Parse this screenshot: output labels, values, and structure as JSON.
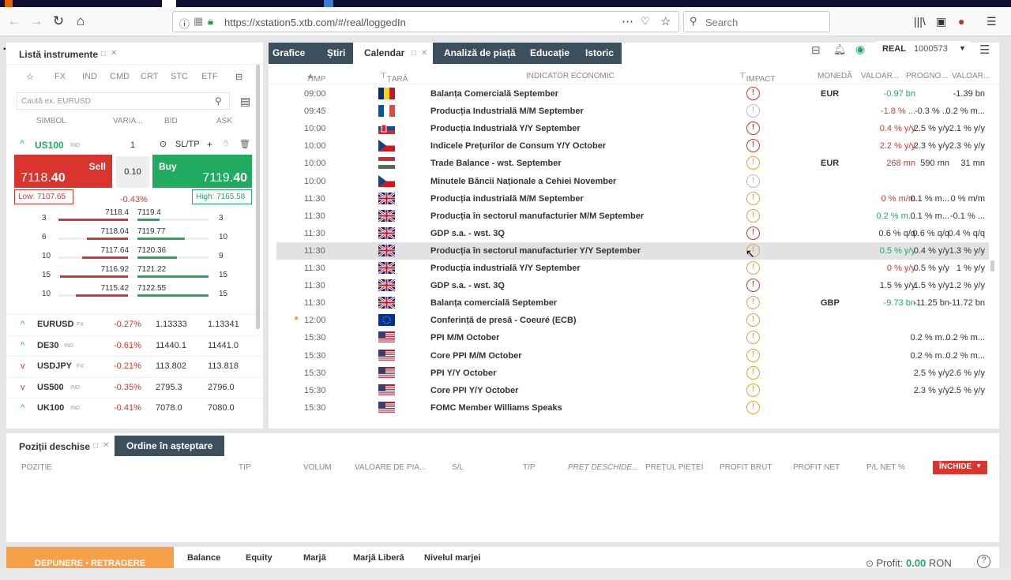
{
  "browser": {
    "url": "https://xstation5.xtb.com/#/real/loggedIn",
    "search_placeholder": "Search"
  },
  "left": {
    "title": "Listă instrumente",
    "categories": [
      "FX",
      "IND",
      "CMD",
      "CRT",
      "STC",
      "ETF"
    ],
    "search_placeholder": "Caută ex. EURUSD",
    "cols": [
      "SIMBOL",
      "VARIA...",
      "BID",
      "ASK"
    ],
    "selected": {
      "symbol": "US100",
      "tag": "IND",
      "qty": "1",
      "sltp": "SL/TP",
      "sell_label": "Sell",
      "sell_price_main": "7118.",
      "sell_price_big": "40",
      "buy_label": "Buy",
      "buy_price_main": "7119.",
      "buy_price_big": "40",
      "volume": "0.10",
      "low": "Low: 7107.65",
      "high": "High: 7165.58",
      "change": "-0.43%"
    },
    "depth": [
      {
        "l": "3",
        "bid": "7118.4",
        "ask": "7119.4",
        "r": "3"
      },
      {
        "l": "6",
        "bid": "7118.04",
        "ask": "7119.77",
        "r": "10"
      },
      {
        "l": "10",
        "bid": "7117.64",
        "ask": "7120.36",
        "r": "9"
      },
      {
        "l": "15",
        "bid": "7116.92",
        "ask": "7121.22",
        "r": "15"
      },
      {
        "l": "10",
        "bid": "7115.42",
        "ask": "7122.55",
        "r": "15"
      }
    ],
    "instruments": [
      {
        "sym": "EURUSD",
        "tag": "FX",
        "chg": "-0.27%",
        "bid": "1.13333",
        "ask": "1.13341"
      },
      {
        "sym": "DE30",
        "tag": "IND",
        "chg": "-0.61%",
        "bid": "11440.1",
        "ask": "11441.0"
      },
      {
        "sym": "USDJPY",
        "tag": "FX",
        "chg": "-0.21%",
        "bid": "113.802",
        "ask": "113.818"
      },
      {
        "sym": "US500",
        "tag": "IND",
        "chg": "-0.35%",
        "bid": "2795.3",
        "ask": "2796.0"
      },
      {
        "sym": "UK100",
        "tag": "IND",
        "chg": "-0.41%",
        "bid": "7078.0",
        "ask": "7080.0"
      }
    ]
  },
  "center": {
    "tabs": [
      "Grafice",
      "Știri",
      "Calendar",
      "Analiză de piață",
      "Educație",
      "Istoric"
    ],
    "headers": [
      "TIMP",
      "ȚARĂ",
      "INDICATOR ECONOMIC",
      "IMPACT",
      "MONEDĂ",
      "VALOAR...",
      "PROGNO...",
      "VALOAR..."
    ],
    "rows": [
      {
        "t": "09:00",
        "flag": "ro",
        "ind": "Balanța Comercială September",
        "imp": "h",
        "cur": "EUR",
        "v1": "-0.97 bn",
        "c1": "grn",
        "v2": "",
        "v3": "-1.39 bn"
      },
      {
        "t": "09:45",
        "flag": "fr",
        "ind": "Producția Industrială M/M September",
        "imp": "l",
        "cur": "",
        "v1": "-1.8 % ...",
        "c1": "red",
        "v2": "-0.3 % ...",
        "v3": "0.2 % m..."
      },
      {
        "t": "10:00",
        "flag": "sk",
        "ind": "Producția Industrială Y/Y September",
        "imp": "h",
        "cur": "",
        "v1": "0.4 % y/y",
        "c1": "red",
        "v2": "2.5 % y/y",
        "v3": "2.1 % y/y"
      },
      {
        "t": "10:00",
        "flag": "cz",
        "ind": "Indicele Prețurilor de Consum Y/Y October",
        "imp": "h",
        "cur": "",
        "v1": "2.2 % y/y",
        "c1": "red",
        "v2": "2.3 % y/y",
        "v3": "2.3 % y/y"
      },
      {
        "t": "10:00",
        "flag": "hu",
        "ind": "Trade Balance - wst. September",
        "imp": "m",
        "cur": "EUR",
        "v1": "268 mn",
        "c1": "red",
        "v2": "590 mn",
        "v3": "31 mn"
      },
      {
        "t": "10:00",
        "flag": "cz",
        "ind": "Minutele Băncii Naționale a Cehiei November",
        "imp": "l",
        "cur": "",
        "v1": "",
        "c1": "blk",
        "v2": "",
        "v3": ""
      },
      {
        "t": "11:30",
        "flag": "gb",
        "ind": "Producția industrială M/M September",
        "imp": "m",
        "cur": "",
        "v1": "0 % m/m",
        "c1": "red",
        "v2": "0.1 % m...",
        "v3": "0 % m/m"
      },
      {
        "t": "11:30",
        "flag": "gb",
        "ind": "Producția în sectorul manufacturier M/M September",
        "imp": "m",
        "cur": "",
        "v1": "0.2 % m...",
        "c1": "grn",
        "v2": "0.1 % m...",
        "v3": "-0.1 % ..."
      },
      {
        "t": "11:30",
        "flag": "gb",
        "ind": "GDP s.a. - wst. 3Q",
        "imp": "h",
        "cur": "",
        "v1": "0.6 % q/q",
        "c1": "blk",
        "v2": "0.6 % q/q",
        "v3": "0.4 % q/q"
      },
      {
        "t": "11:30",
        "flag": "gb",
        "ind": "Producția în sectorul manufacturier Y/Y September",
        "imp": "m",
        "cur": "",
        "v1": "0.5 % y/y",
        "c1": "grn",
        "v2": "0.4 % y/y",
        "v3": "1.3 % y/y",
        "hl": true
      },
      {
        "t": "11:30",
        "flag": "gb",
        "ind": "Producția industrială Y/Y September",
        "imp": "m",
        "cur": "",
        "v1": "0 % y/y",
        "c1": "red",
        "v2": "0.5 % y/y",
        "v3": "1 % y/y"
      },
      {
        "t": "11:30",
        "flag": "gb",
        "ind": "GDP s.a. - wst. 3Q",
        "imp": "h",
        "cur": "",
        "v1": "1.5 % y/y",
        "c1": "blk",
        "v2": "1.5 % y/y",
        "v3": "1.2 % y/y"
      },
      {
        "t": "11:30",
        "flag": "gb",
        "ind": "Balanța comercială September",
        "imp": "m",
        "cur": "GBP",
        "v1": "-9.73 bn",
        "c1": "grn",
        "v2": "-11.25 bn",
        "v3": "-11.72 bn"
      },
      {
        "t": "12:00",
        "flag": "eu",
        "ind": "Conferință de presă - Coeuré (ECB)",
        "imp": "m",
        "cur": "",
        "v1": "",
        "c1": "blk",
        "v2": "",
        "v3": "",
        "dot": true
      },
      {
        "t": "15:30",
        "flag": "us",
        "ind": "PPI M/M October",
        "imp": "m",
        "cur": "",
        "v1": "",
        "c1": "blk",
        "v2": "0.2 % m...",
        "v3": "0.2 % m..."
      },
      {
        "t": "15:30",
        "flag": "us",
        "ind": "Core PPI M/M October",
        "imp": "m",
        "cur": "",
        "v1": "",
        "c1": "blk",
        "v2": "0.2 % m...",
        "v3": "0.2 % m..."
      },
      {
        "t": "15:30",
        "flag": "us",
        "ind": "PPI Y/Y October",
        "imp": "m",
        "cur": "",
        "v1": "",
        "c1": "blk",
        "v2": "2.5 % y/y",
        "v3": "2.6 % y/y"
      },
      {
        "t": "15:30",
        "flag": "us",
        "ind": "Core PPI Y/Y October",
        "imp": "m",
        "cur": "",
        "v1": "",
        "c1": "blk",
        "v2": "2.3 % y/y",
        "v3": "2.5 % y/y"
      },
      {
        "t": "15:30",
        "flag": "us",
        "ind": "FOMC Member Williams Speaks",
        "imp": "m",
        "cur": "",
        "v1": "",
        "c1": "blk",
        "v2": "",
        "v3": ""
      }
    ]
  },
  "account": {
    "type": "REAL",
    "number": "1000573"
  },
  "bottom": {
    "tab1": "Poziții deschise",
    "tab2": "Ordine în așteptare",
    "cols": [
      "POZIȚIE",
      "TIP",
      "VOLUM",
      "VALOARE DE PIA...",
      "S/L",
      "T/P",
      "PREȚ DESCHIDE...",
      "PREȚUL PIEȚEI",
      "PROFIT BRUT",
      "PROFIT NET",
      "P/L NET %"
    ],
    "close": "ÎNCHIDE"
  },
  "footer": {
    "deposit": "DEPUNERE • RETRAGERE",
    "labels": [
      "Balance",
      "Equity",
      "Marjă",
      "Marjă Liberă",
      "Nivelul marjei"
    ],
    "profit_label": "Profit:",
    "profit_value": "0.00",
    "currency": "RON"
  }
}
